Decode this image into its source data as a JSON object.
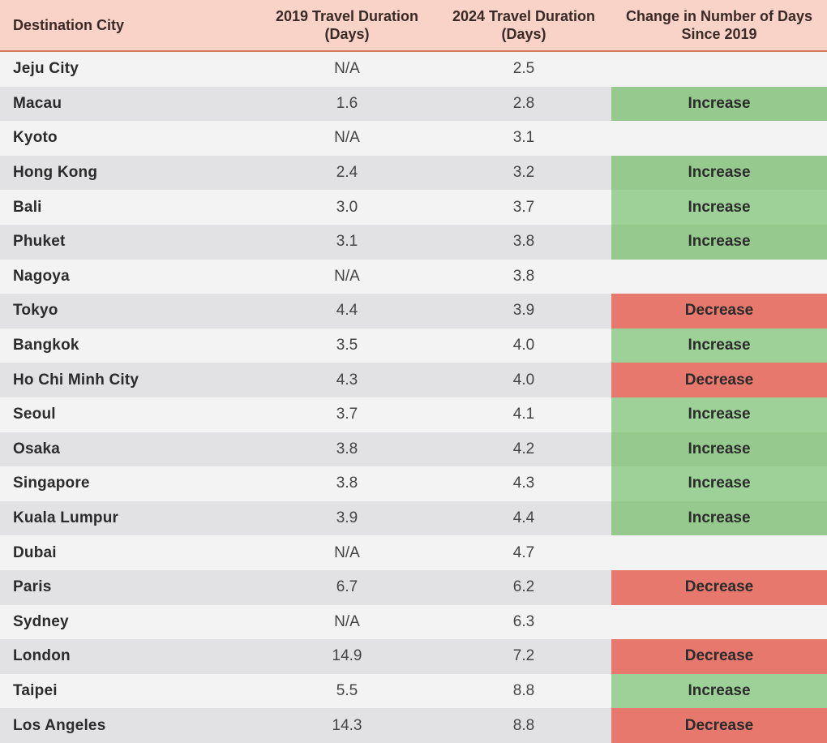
{
  "chart_data": {
    "type": "table",
    "columns": [
      "Destination City",
      "2019 Travel Duration (Days)",
      "2024 Travel Duration (Days)",
      "Change in Number of Days Since 2019"
    ],
    "rows": [
      {
        "city": "Jeju City",
        "y2019": "N/A",
        "y2024": "2.5",
        "change": ""
      },
      {
        "city": "Macau",
        "y2019": "1.6",
        "y2024": "2.8",
        "change": "Increase"
      },
      {
        "city": "Kyoto",
        "y2019": "N/A",
        "y2024": "3.1",
        "change": ""
      },
      {
        "city": "Hong Kong",
        "y2019": "2.4",
        "y2024": "3.2",
        "change": "Increase"
      },
      {
        "city": "Bali",
        "y2019": "3.0",
        "y2024": "3.7",
        "change": "Increase"
      },
      {
        "city": "Phuket",
        "y2019": "3.1",
        "y2024": "3.8",
        "change": "Increase"
      },
      {
        "city": "Nagoya",
        "y2019": "N/A",
        "y2024": "3.8",
        "change": ""
      },
      {
        "city": "Tokyo",
        "y2019": "4.4",
        "y2024": "3.9",
        "change": "Decrease"
      },
      {
        "city": "Bangkok",
        "y2019": "3.5",
        "y2024": "4.0",
        "change": "Increase"
      },
      {
        "city": "Ho Chi Minh City",
        "y2019": "4.3",
        "y2024": "4.0",
        "change": "Decrease"
      },
      {
        "city": "Seoul",
        "y2019": "3.7",
        "y2024": "4.1",
        "change": "Increase"
      },
      {
        "city": "Osaka",
        "y2019": "3.8",
        "y2024": "4.2",
        "change": "Increase"
      },
      {
        "city": "Singapore",
        "y2019": "3.8",
        "y2024": "4.3",
        "change": "Increase"
      },
      {
        "city": "Kuala Lumpur",
        "y2019": "3.9",
        "y2024": "4.4",
        "change": "Increase"
      },
      {
        "city": "Dubai",
        "y2019": "N/A",
        "y2024": "4.7",
        "change": ""
      },
      {
        "city": "Paris",
        "y2019": "6.7",
        "y2024": "6.2",
        "change": "Decrease"
      },
      {
        "city": "Sydney",
        "y2019": "N/A",
        "y2024": "6.3",
        "change": ""
      },
      {
        "city": "London",
        "y2019": "14.9",
        "y2024": "7.2",
        "change": "Decrease"
      },
      {
        "city": "Taipei",
        "y2019": "5.5",
        "y2024": "8.8",
        "change": "Increase"
      },
      {
        "city": "Los Angeles",
        "y2019": "14.3",
        "y2024": "8.8",
        "change": "Decrease"
      }
    ],
    "colors": {
      "header_bg": "#f9d3c8",
      "increase": "#96c98e",
      "decrease": "#e7786d"
    }
  }
}
